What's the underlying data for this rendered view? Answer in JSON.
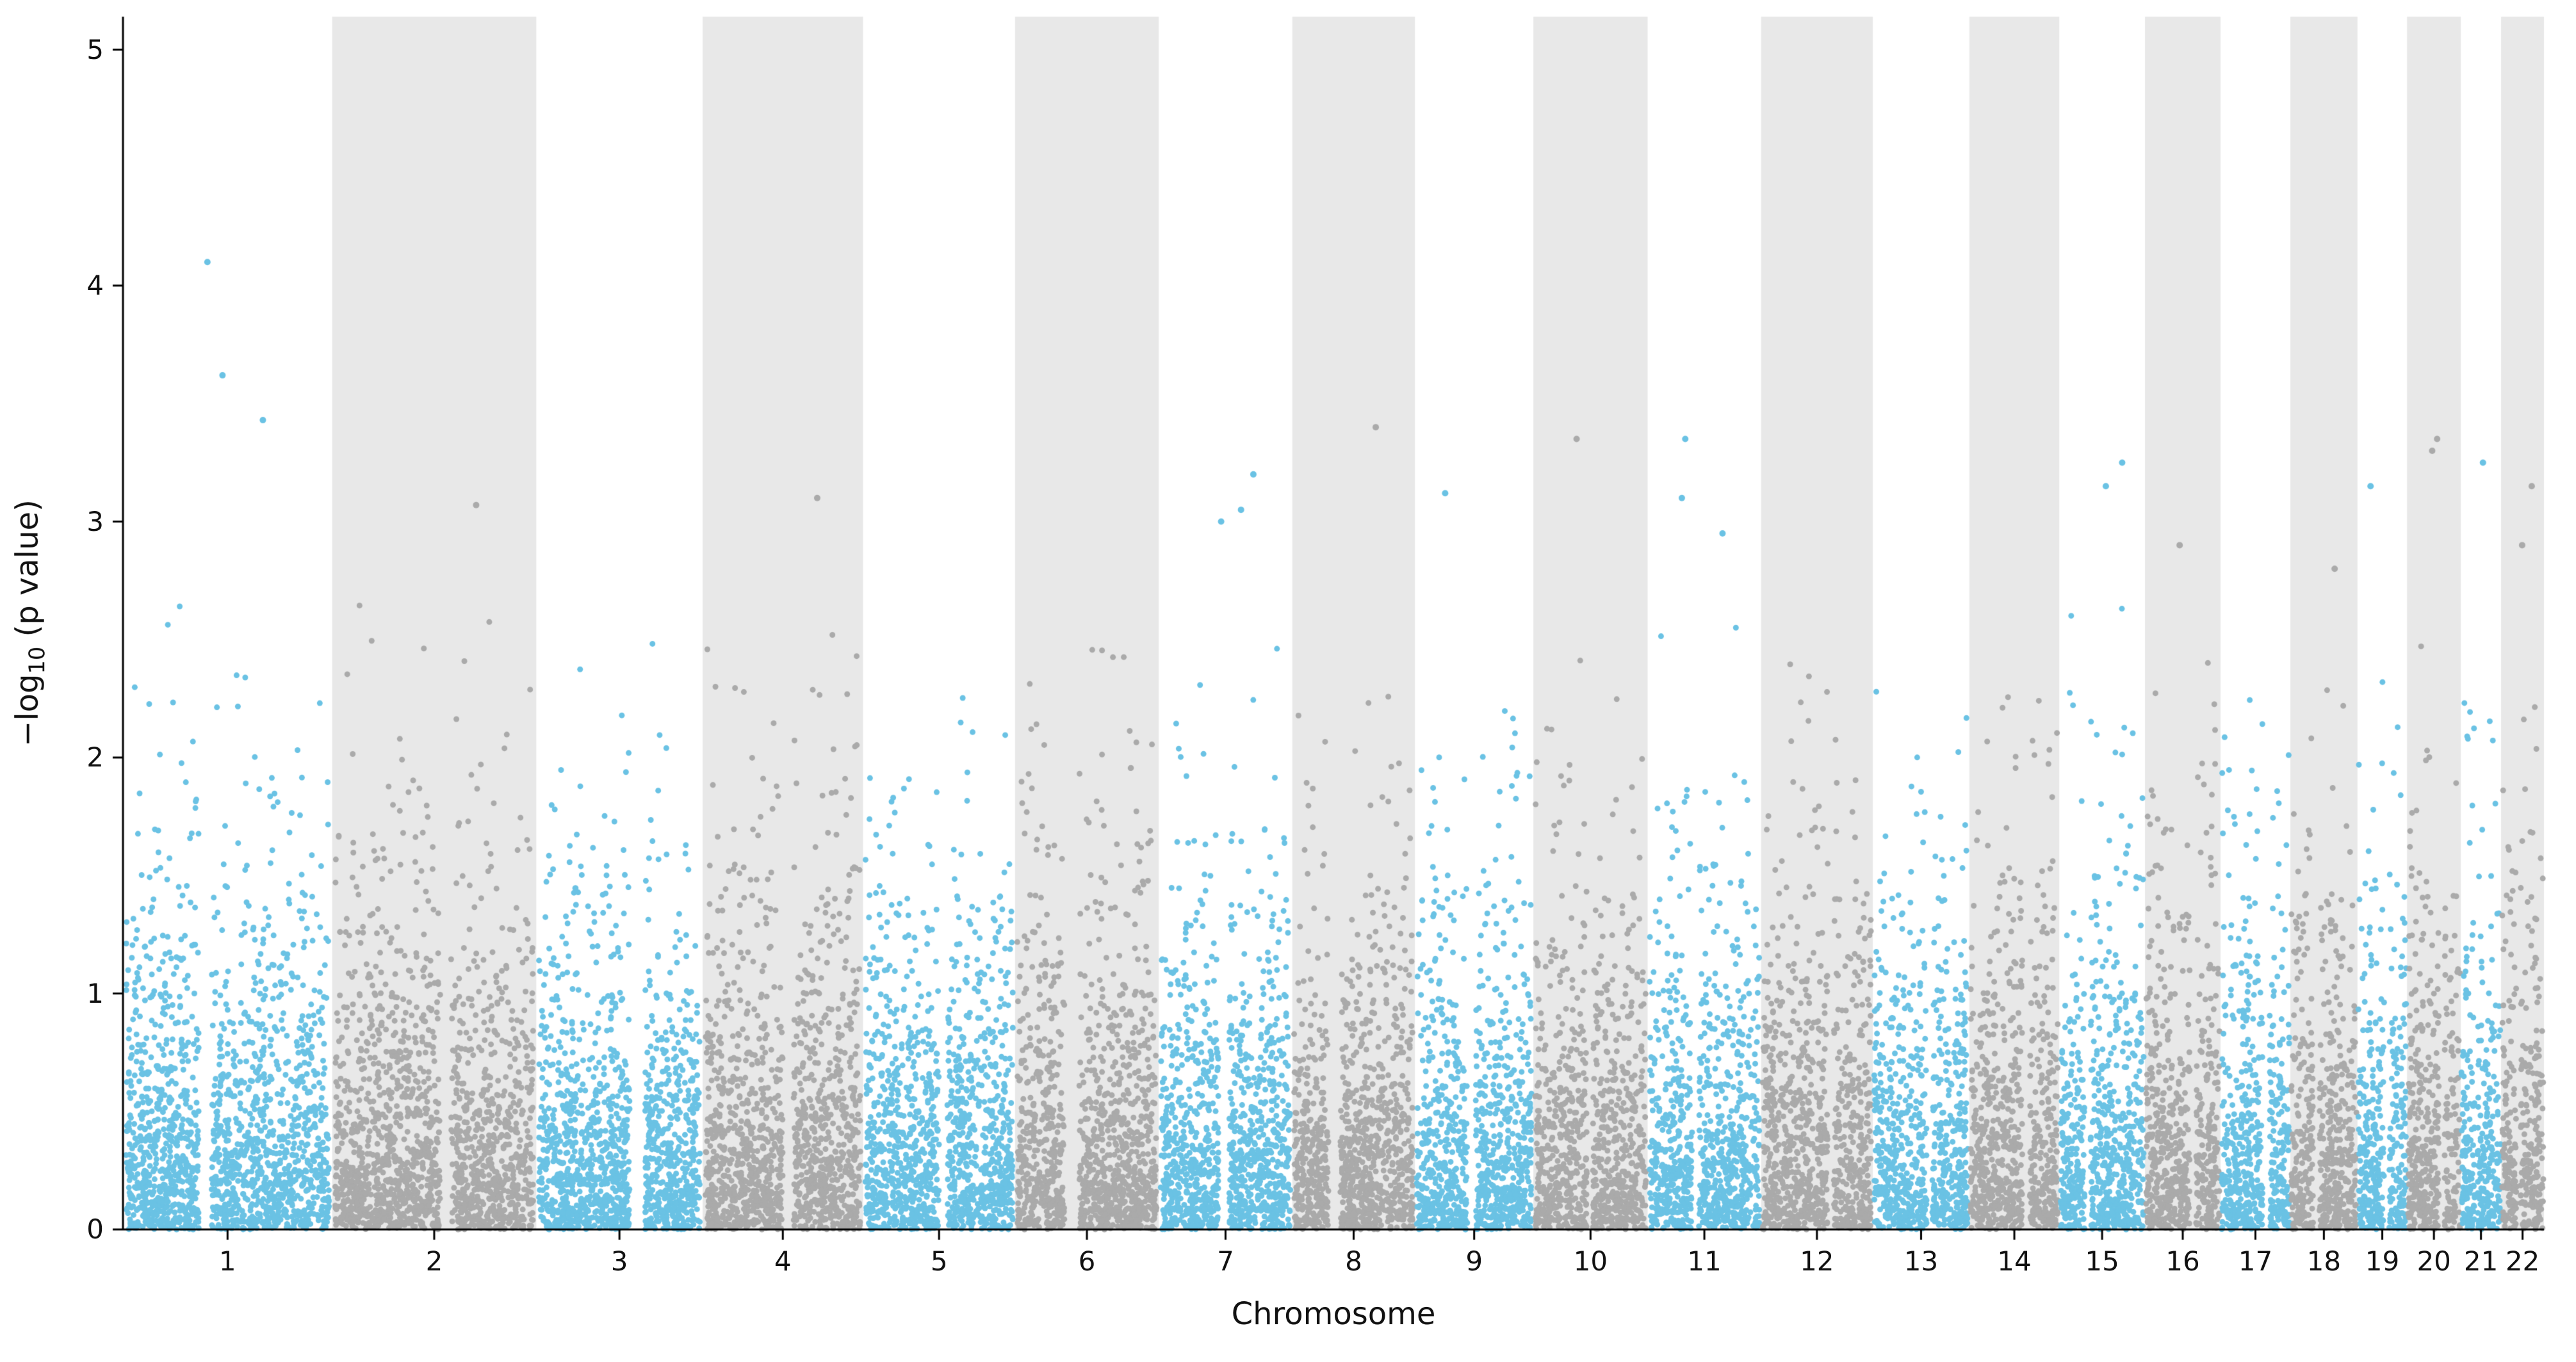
{
  "figure": {
    "ylabel_prefix": "−log",
    "ylabel_sub": "10",
    "ylabel_suffix": " (p value)"
  },
  "chart_data": {
    "type": "scatter",
    "subtype": "manhattan-plot",
    "title": "",
    "xlabel": "Chromosome",
    "ylabel": "-log10 (p value)",
    "ylim": [
      0,
      5.14
    ],
    "yticks": [
      0,
      1,
      2,
      3,
      4,
      5
    ],
    "grid": false,
    "legend": null,
    "background": "#ffffff",
    "band_color": "#e8e8e8",
    "axis_color": "#000000",
    "point_colors": {
      "odd_chromosome": "#6ac2e4",
      "even_chromosome": "#aaaaaa"
    },
    "point_radius_px": 4.5,
    "points_per_mb": 7,
    "seed": 1337,
    "chromosomes": [
      {
        "label": "1",
        "size_mb": 249,
        "cap": 2.7,
        "outliers": [
          4.1,
          3.62,
          3.43
        ]
      },
      {
        "label": "2",
        "size_mb": 243,
        "cap": 2.7,
        "outliers": [
          3.07
        ]
      },
      {
        "label": "3",
        "size_mb": 198,
        "cap": 2.5,
        "outliers": []
      },
      {
        "label": "4",
        "size_mb": 191,
        "cap": 2.55,
        "outliers": [
          3.1
        ]
      },
      {
        "label": "5",
        "size_mb": 181,
        "cap": 2.45,
        "outliers": []
      },
      {
        "label": "6",
        "size_mb": 171,
        "cap": 2.6,
        "outliers": []
      },
      {
        "label": "7",
        "size_mb": 159,
        "cap": 2.6,
        "outliers": [
          3.2,
          3.05,
          3.0
        ]
      },
      {
        "label": "8",
        "size_mb": 146,
        "cap": 2.4,
        "outliers": [
          3.4
        ]
      },
      {
        "label": "9",
        "size_mb": 141,
        "cap": 2.2,
        "outliers": [
          3.12
        ]
      },
      {
        "label": "10",
        "size_mb": 136,
        "cap": 2.6,
        "outliers": [
          3.35
        ]
      },
      {
        "label": "11",
        "size_mb": 135,
        "cap": 2.6,
        "outliers": [
          3.35,
          3.1,
          2.95
        ]
      },
      {
        "label": "12",
        "size_mb": 133,
        "cap": 2.45,
        "outliers": []
      },
      {
        "label": "13",
        "size_mb": 115,
        "cap": 2.4,
        "outliers": []
      },
      {
        "label": "14",
        "size_mb": 107,
        "cap": 2.3,
        "outliers": []
      },
      {
        "label": "15",
        "size_mb": 102,
        "cap": 2.65,
        "outliers": [
          3.25,
          3.15
        ]
      },
      {
        "label": "16",
        "size_mb": 90,
        "cap": 2.45,
        "outliers": [
          2.9
        ]
      },
      {
        "label": "17",
        "size_mb": 83,
        "cap": 2.25,
        "outliers": []
      },
      {
        "label": "18",
        "size_mb": 80,
        "cap": 2.4,
        "outliers": [
          2.8
        ]
      },
      {
        "label": "19",
        "size_mb": 59,
        "cap": 2.45,
        "outliers": [
          3.15
        ]
      },
      {
        "label": "20",
        "size_mb": 64,
        "cap": 2.6,
        "outliers": [
          3.35,
          3.3
        ]
      },
      {
        "label": "21",
        "size_mb": 48,
        "cap": 2.4,
        "outliers": [
          3.25
        ]
      },
      {
        "label": "22",
        "size_mb": 51,
        "cap": 2.6,
        "outliers": [
          3.15,
          2.9
        ]
      }
    ]
  }
}
